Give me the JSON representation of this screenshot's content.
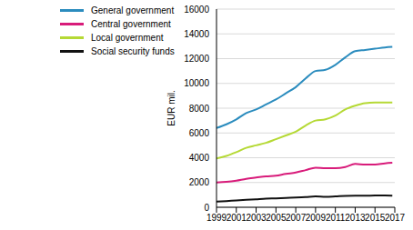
{
  "chart_data": {
    "type": "line",
    "y_label": "EUR mil.",
    "x": [
      1999,
      2000,
      2001,
      2002,
      2003,
      2004,
      2005,
      2006,
      2007,
      2008,
      2009,
      2010,
      2011,
      2012,
      2013,
      2014,
      2015,
      2016,
      2016.75
    ],
    "series": [
      {
        "name": "General government",
        "color": "#2b8cbe",
        "values": [
          6400,
          6700,
          7100,
          7600,
          7900,
          8300,
          8700,
          9200,
          9700,
          10400,
          11000,
          11100,
          11500,
          12100,
          12600,
          12700,
          12800,
          12900,
          12950
        ]
      },
      {
        "name": "Central government",
        "color": "#d81b7a",
        "values": [
          2000,
          2050,
          2150,
          2300,
          2400,
          2500,
          2550,
          2700,
          2800,
          3000,
          3200,
          3150,
          3150,
          3250,
          3500,
          3450,
          3450,
          3550,
          3600
        ]
      },
      {
        "name": "Local government",
        "color": "#b5d935",
        "values": [
          3950,
          4150,
          4450,
          4800,
          5000,
          5200,
          5500,
          5800,
          6100,
          6600,
          7000,
          7100,
          7400,
          7900,
          8200,
          8400,
          8450,
          8450,
          8450
        ]
      },
      {
        "name": "Social security funds",
        "color": "#111111",
        "values": [
          450,
          500,
          550,
          600,
          650,
          700,
          720,
          750,
          780,
          820,
          880,
          850,
          880,
          920,
          930,
          930,
          950,
          950,
          930
        ]
      }
    ],
    "xlim": [
      1999,
      2017
    ],
    "xticks": [
      1999,
      2001,
      2003,
      2005,
      2007,
      2009,
      2011,
      2013,
      2015,
      2017
    ],
    "ylim": [
      0,
      16000
    ],
    "yticks": [
      0,
      2000,
      4000,
      6000,
      8000,
      10000,
      12000,
      14000,
      16000
    ],
    "grid": true,
    "legend": "upper left"
  }
}
